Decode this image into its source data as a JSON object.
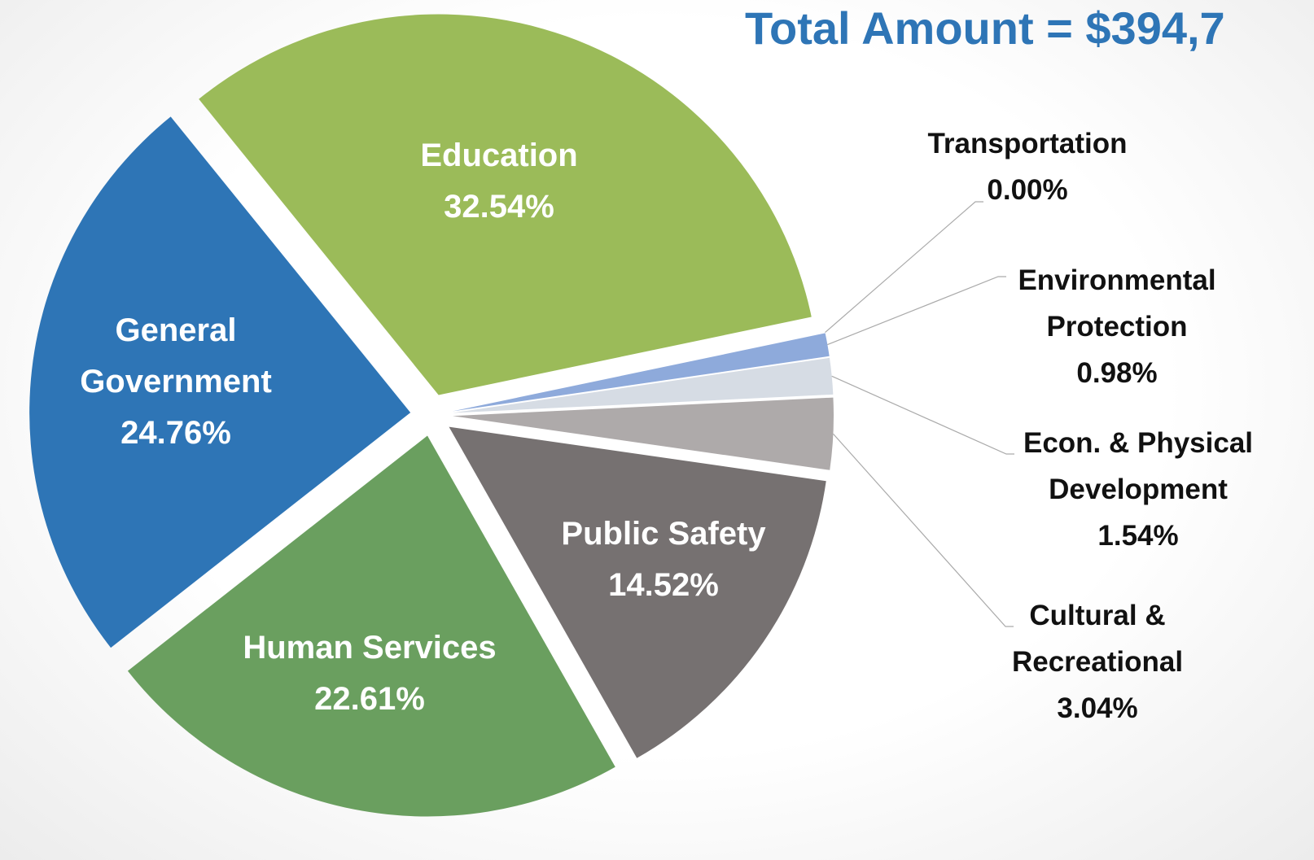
{
  "chart_data": {
    "type": "pie",
    "title": "Total Amount = $394,7",
    "categories": [
      "Education",
      "Transportation",
      "Environmental Protection",
      "Econ. & Physical Development",
      "Cultural & Recreational",
      "Public Safety",
      "Human Services",
      "General Government"
    ],
    "values": [
      32.54,
      0.0,
      0.98,
      1.54,
      3.04,
      14.52,
      22.61,
      24.76
    ],
    "value_labels": [
      "32.54%",
      "0.00%",
      "0.98%",
      "1.54%",
      "3.04%",
      "14.52%",
      "22.61%",
      "24.76%"
    ],
    "colors": [
      "#9bbb59",
      "#4472c4",
      "#8eaadb",
      "#d6dce4",
      "#aeaaaa",
      "#767171",
      "#6a9f5f",
      "#2e75b6"
    ]
  }
}
